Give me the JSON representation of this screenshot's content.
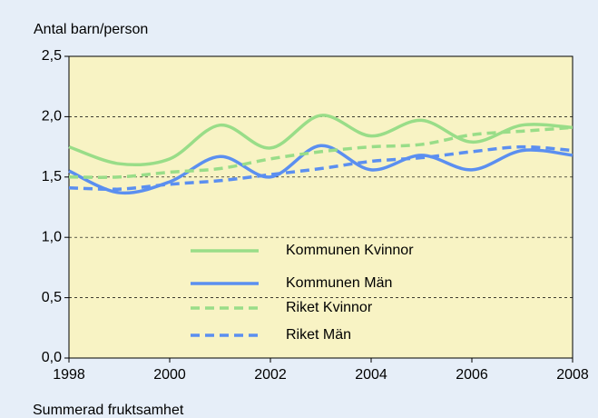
{
  "chart_data": {
    "type": "line",
    "y_label": "Antal barn/person",
    "x_label": "Summerad fruktsamhet",
    "x": [
      1998,
      1999,
      2000,
      2001,
      2002,
      2003,
      2004,
      2005,
      2006,
      2007,
      2008
    ],
    "series": [
      {
        "name": "Kommunen Kvinnor",
        "color": "#99dd88",
        "style": "solid",
        "values": [
          1.75,
          1.61,
          1.65,
          1.93,
          1.74,
          2.01,
          1.84,
          1.97,
          1.79,
          1.93,
          1.91
        ]
      },
      {
        "name": "Kommunen Män",
        "color": "#5b8ff0",
        "style": "solid",
        "values": [
          1.55,
          1.37,
          1.46,
          1.67,
          1.5,
          1.76,
          1.56,
          1.68,
          1.56,
          1.72,
          1.68
        ]
      },
      {
        "name": "Riket Kvinnor",
        "color": "#99dd88",
        "style": "dashed",
        "values": [
          1.5,
          1.5,
          1.54,
          1.57,
          1.65,
          1.71,
          1.75,
          1.77,
          1.85,
          1.88,
          1.91
        ]
      },
      {
        "name": "Riket Män",
        "color": "#5b8ff0",
        "style": "dashed",
        "values": [
          1.41,
          1.4,
          1.44,
          1.47,
          1.52,
          1.57,
          1.63,
          1.66,
          1.71,
          1.75,
          1.72
        ]
      }
    ],
    "xlim": [
      1998,
      2008
    ],
    "xticks": [
      1998,
      2000,
      2002,
      2004,
      2006,
      2008
    ],
    "ylim": [
      0,
      2.5
    ],
    "yticks": [
      {
        "value": 0,
        "label": "0,0"
      },
      {
        "value": 0.5,
        "label": "0,5"
      },
      {
        "value": 1,
        "label": "1,0"
      },
      {
        "value": 1.5,
        "label": "1,5"
      },
      {
        "value": 2,
        "label": "2,0"
      },
      {
        "value": 2.5,
        "label": "2,5"
      }
    ],
    "grid": true,
    "legend": "bottom-center"
  }
}
